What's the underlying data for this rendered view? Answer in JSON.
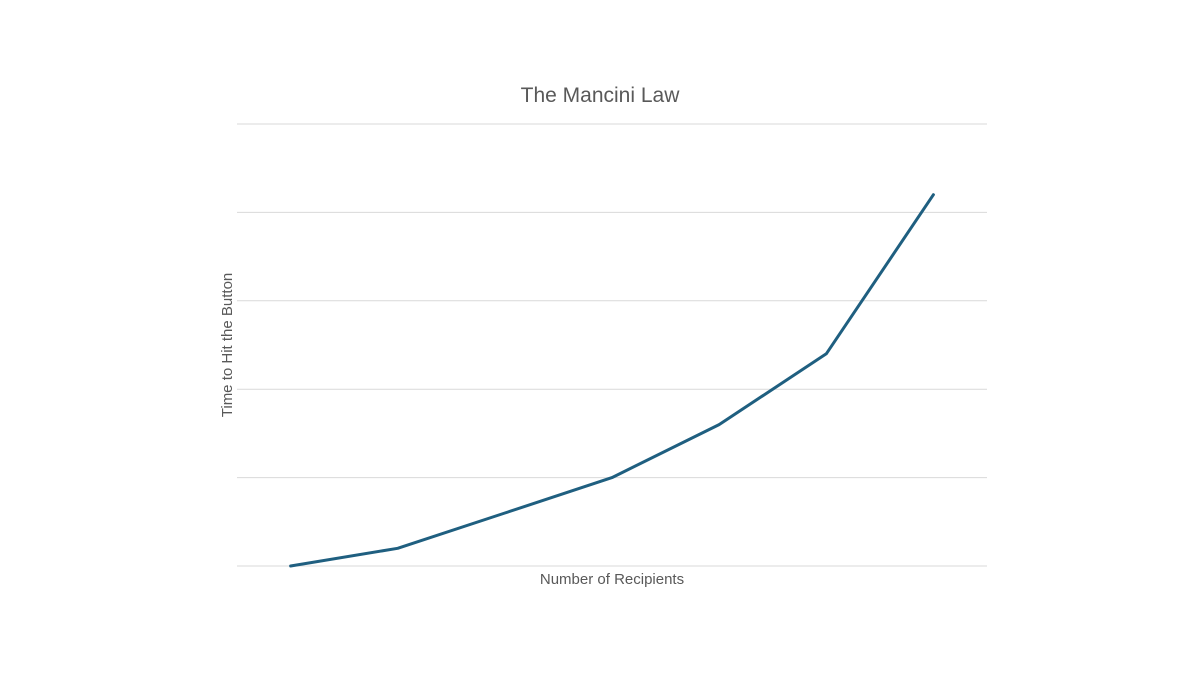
{
  "chart_data": {
    "type": "line",
    "title": "The Mancini Law",
    "xlabel": "Number of Recipients",
    "ylabel": "Time to Hit the Button",
    "x": [
      1,
      2,
      3,
      4,
      5,
      6,
      7
    ],
    "series": [
      {
        "values": [
          0,
          0.2,
          0.6,
          1.0,
          1.6,
          2.4,
          4.2
        ]
      }
    ],
    "ylim": [
      0,
      5
    ],
    "ytick_step": 1,
    "grid": true,
    "show_tick_labels": false,
    "legend": "none",
    "colors": {
      "line": "#1f5f80",
      "grid": "#d9d9d9",
      "text": "#595959"
    }
  }
}
